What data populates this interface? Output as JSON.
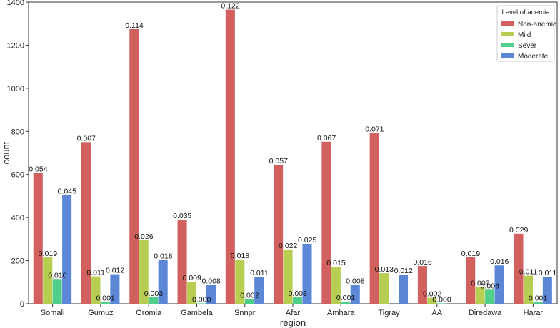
{
  "chart_data": {
    "type": "bar",
    "xlabel": "region",
    "ylabel": "count",
    "ylim": [
      0,
      1400
    ],
    "yticks": [
      0,
      200,
      400,
      600,
      800,
      1000,
      1200,
      1400
    ],
    "grid": false,
    "legend": {
      "title": "Level of anemia",
      "position": "top-right"
    },
    "categories": [
      "Somali",
      "Gumuz",
      "Oromia",
      "Gambela",
      "Snnpr",
      "Afar",
      "Amhara",
      "Tigray",
      "AA",
      "Diredawa",
      "Harar"
    ],
    "series": [
      {
        "name": "Non-anemic",
        "color": "#d1605e",
        "values": [
          608,
          750,
          1275,
          390,
          1365,
          645,
          752,
          793,
          175,
          215,
          325
        ],
        "labels": [
          "0.054",
          "0.067",
          "0.114",
          "0.035",
          "0.122",
          "0.057",
          "0.067",
          "0.071",
          "0.016",
          "0.019",
          "0.029"
        ]
      },
      {
        "name": "Mild",
        "color": "#b6cf52",
        "values": [
          215,
          127,
          295,
          102,
          205,
          252,
          172,
          142,
          28,
          78,
          130
        ],
        "labels": [
          "0.019",
          "0.011",
          "0.026",
          "0.009",
          "0.018",
          "0.022",
          "0.015",
          "0.013",
          "0.002",
          "0.007",
          "0.011"
        ]
      },
      {
        "name": "Sever",
        "color": "#4fcf8a",
        "values": [
          115,
          8,
          30,
          2,
          22,
          30,
          10,
          0,
          2,
          65,
          8
        ],
        "labels": [
          "0.010",
          "0.001",
          "0.003",
          "0.000",
          "0.002",
          "0.003",
          "0.001",
          "",
          "0.000",
          "0.006",
          "0.001"
        ]
      },
      {
        "name": "Moderate",
        "color": "#5b87d6",
        "values": [
          505,
          137,
          203,
          88,
          125,
          278,
          88,
          135,
          0,
          178,
          125
        ],
        "labels": [
          "0.045",
          "0.012",
          "0.018",
          "0.008",
          "0.011",
          "0.025",
          "0.008",
          "0.012",
          "",
          "0.016",
          "0.011"
        ]
      }
    ]
  }
}
